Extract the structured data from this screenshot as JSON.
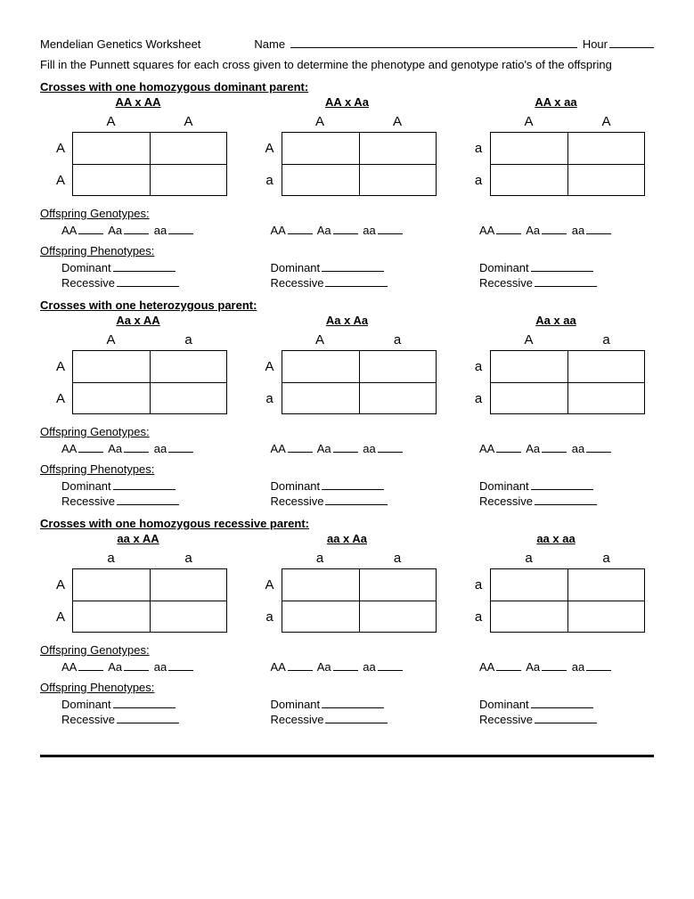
{
  "header": {
    "title": "Mendelian Genetics Worksheet",
    "nameLabel": "Name",
    "hourLabel": "Hour"
  },
  "instructions": "Fill in the Punnett squares for each cross given to determine the phenotype and genotype ratio's of the offspring",
  "labels": {
    "offspringGenotypes": "Offspring Genotypes:",
    "offspringPhenotypes": "Offspring Phenotypes:",
    "AA": "AA",
    "Aa": "Aa",
    "aa": "aa",
    "Dominant": "Dominant",
    "Recessive": "Recessive"
  },
  "sections": [
    {
      "header": "Crosses with one homozygous dominant parent:",
      "crosses": [
        {
          "label": "AA x AA",
          "top": [
            "A",
            "A"
          ],
          "side": [
            "A",
            "A"
          ]
        },
        {
          "label": "AA x Aa",
          "top": [
            "A",
            "A"
          ],
          "side": [
            "A",
            "a"
          ]
        },
        {
          "label": "AA x aa",
          "top": [
            "A",
            "A"
          ],
          "side": [
            "a",
            "a"
          ]
        }
      ]
    },
    {
      "header": "Crosses with one heterozygous parent:",
      "crosses": [
        {
          "label": "Aa x AA",
          "top": [
            "A",
            "a"
          ],
          "side": [
            "A",
            "A"
          ]
        },
        {
          "label": "Aa x Aa",
          "top": [
            "A",
            "a"
          ],
          "side": [
            "A",
            "a"
          ]
        },
        {
          "label": "Aa x aa",
          "top": [
            "A",
            "a"
          ],
          "side": [
            "a",
            "a"
          ]
        }
      ]
    },
    {
      "header": "Crosses with one homozygous recessive parent:",
      "crosses": [
        {
          "label": "aa x AA",
          "top": [
            "a",
            "a"
          ],
          "side": [
            "A",
            "A"
          ]
        },
        {
          "label": "aa x Aa",
          "top": [
            "a",
            "a"
          ],
          "side": [
            "A",
            "a"
          ]
        },
        {
          "label": "aa x aa",
          "top": [
            "a",
            "a"
          ],
          "side": [
            "a",
            "a"
          ]
        }
      ]
    }
  ]
}
